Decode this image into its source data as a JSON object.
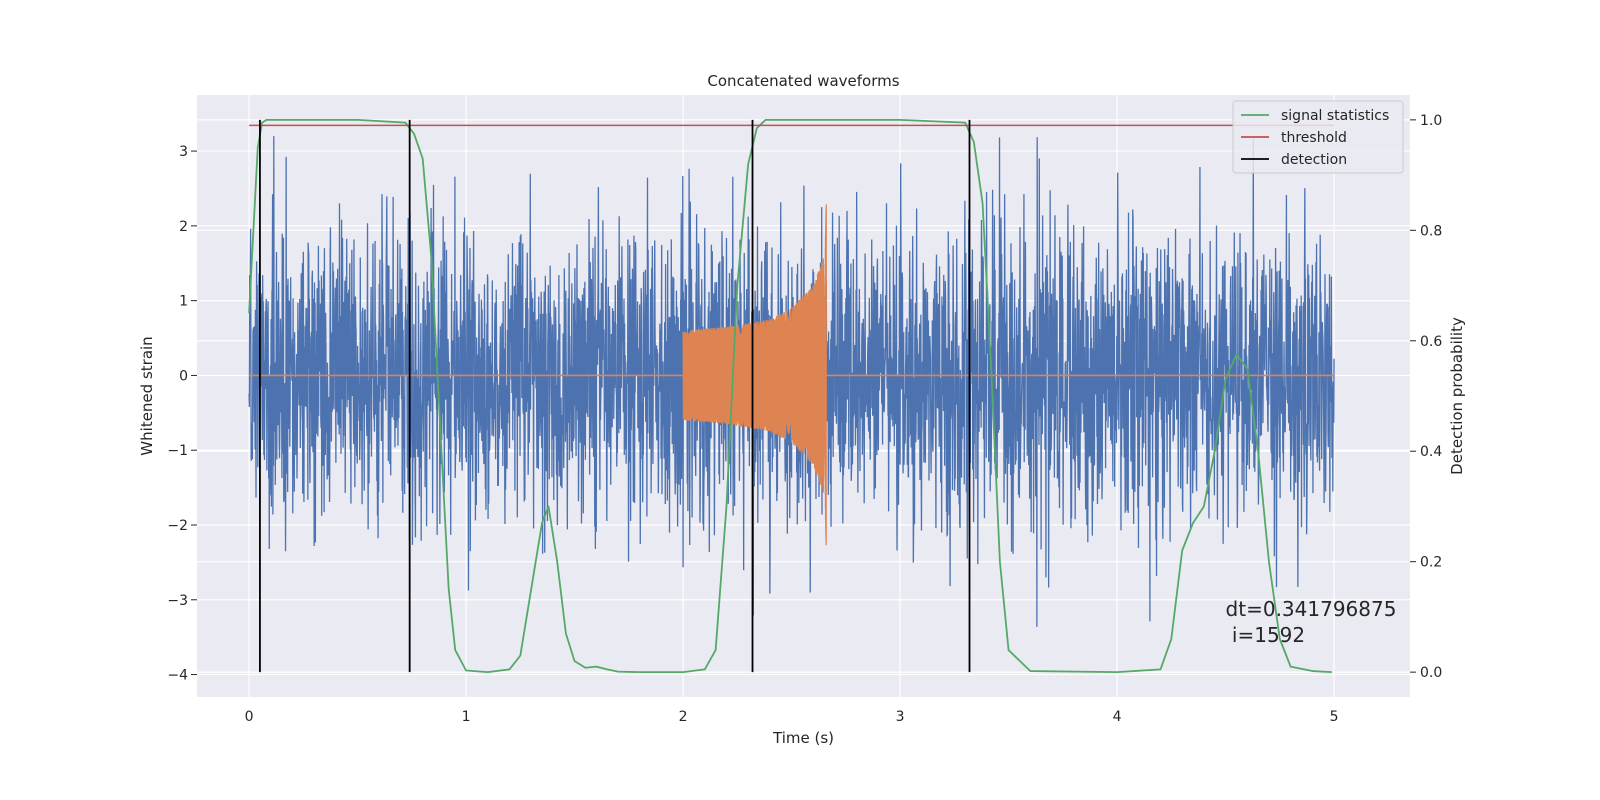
{
  "chart_data": {
    "type": "line",
    "title": "Concatenated waveforms",
    "xlabel": "Time (s)",
    "ylabel": "Whitened strain",
    "y2label": "Detection probability",
    "xlim": [
      -0.24,
      5.35
    ],
    "ylim": [
      -4.3,
      3.75
    ],
    "y2lim": [
      -0.045,
      1.045
    ],
    "x_ticks": [
      0,
      1,
      2,
      3,
      4,
      5
    ],
    "y_ticks": [
      -4,
      -3,
      -2,
      -1,
      0,
      1,
      2,
      3
    ],
    "y2_ticks": [
      0.0,
      0.2,
      0.4,
      0.6,
      0.8,
      1.0
    ],
    "x_tick_labels": [
      "0",
      "1",
      "2",
      "3",
      "4",
      "5"
    ],
    "y_tick_labels": [
      "−4",
      "−3",
      "−2",
      "−1",
      "0",
      "1",
      "2",
      "3"
    ],
    "y2_tick_labels": [
      "0.0",
      "0.2",
      "0.4",
      "0.6",
      "0.8",
      "1.0"
    ],
    "grid": true,
    "legend_position": "top-right",
    "colors": {
      "background": "#eaeaf2",
      "grid": "#ffffff",
      "strain": "#4c72b0",
      "template": "#dd8452",
      "signal": "#55a868",
      "threshold": "#c44e52",
      "detection": "#000000"
    },
    "series": [
      {
        "name": "",
        "axis": "left",
        "kind": "noise",
        "x_range": [
          0,
          5
        ],
        "amplitude": 1.0,
        "min": -3.6,
        "max": 3.2
      },
      {
        "name": "",
        "axis": "left",
        "kind": "chirp",
        "x_range": [
          2.0,
          2.66
        ],
        "envelope": [
          [
            2.0,
            0.6
          ],
          [
            2.2,
            0.65
          ],
          [
            2.4,
            0.75
          ],
          [
            2.5,
            0.9
          ],
          [
            2.6,
            1.2
          ],
          [
            2.65,
            1.6
          ],
          [
            2.66,
            2.3
          ]
        ]
      },
      {
        "name": "signal statistics",
        "axis": "right",
        "x": [
          0.0,
          0.02,
          0.04,
          0.06,
          0.08,
          0.1,
          0.2,
          0.5,
          0.72,
          0.76,
          0.8,
          0.84,
          0.88,
          0.92,
          0.95,
          1.0,
          1.1,
          1.2,
          1.25,
          1.3,
          1.35,
          1.38,
          1.42,
          1.46,
          1.5,
          1.55,
          1.6,
          1.65,
          1.7,
          1.8,
          2.0,
          2.1,
          2.15,
          2.2,
          2.25,
          2.3,
          2.34,
          2.38,
          2.45,
          3.0,
          3.3,
          3.34,
          3.38,
          3.42,
          3.46,
          3.5,
          3.6,
          4.0,
          4.2,
          4.25,
          4.3,
          4.35,
          4.4,
          4.45,
          4.5,
          4.55,
          4.6,
          4.65,
          4.7,
          4.75,
          4.8,
          4.9,
          4.99
        ],
        "values": [
          0.65,
          0.8,
          0.95,
          0.995,
          1.0,
          1.0,
          1.0,
          1.0,
          0.995,
          0.975,
          0.93,
          0.75,
          0.45,
          0.15,
          0.04,
          0.003,
          0.0,
          0.005,
          0.03,
          0.15,
          0.27,
          0.3,
          0.2,
          0.07,
          0.02,
          0.008,
          0.01,
          0.005,
          0.001,
          0.0,
          0.0,
          0.005,
          0.04,
          0.3,
          0.7,
          0.92,
          0.985,
          1.0,
          1.0,
          1.0,
          0.995,
          0.96,
          0.85,
          0.55,
          0.2,
          0.04,
          0.002,
          0.0,
          0.005,
          0.06,
          0.22,
          0.27,
          0.3,
          0.4,
          0.53,
          0.575,
          0.55,
          0.4,
          0.2,
          0.06,
          0.01,
          0.002,
          0.0
        ]
      },
      {
        "name": "threshold",
        "axis": "right",
        "x": [
          0,
          5
        ],
        "values": [
          0.99,
          0.99
        ]
      },
      {
        "name": "detection",
        "axis": "right",
        "kind": "vlines",
        "x": [
          0.05,
          0.74,
          2.32,
          3.32
        ],
        "from": 0.0,
        "to": 1.0
      }
    ],
    "annotation": {
      "x": 4.5,
      "y": -3.0,
      "lines": [
        "dt=0.341796875",
        " i=1592"
      ]
    }
  }
}
